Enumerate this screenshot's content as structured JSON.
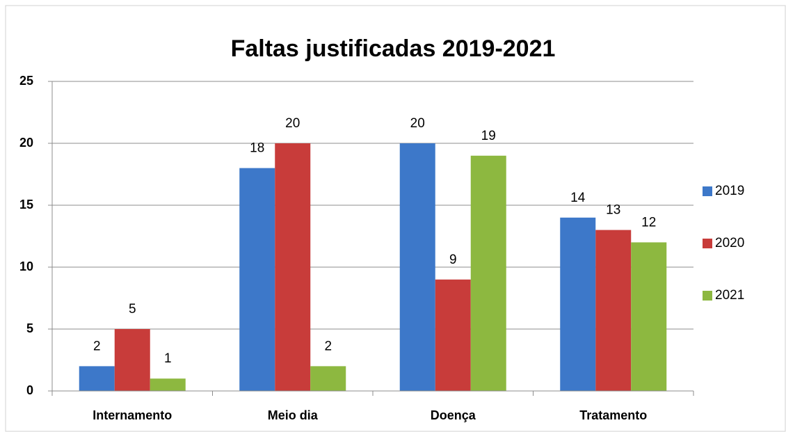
{
  "chart_data": {
    "type": "bar",
    "title": "Faltas justificadas 2019-2021",
    "categories": [
      "Internamento",
      "Meio dia",
      "Doença",
      "Tratamento"
    ],
    "series": [
      {
        "name": "2019",
        "color": "#3d78c9",
        "values": [
          2,
          18,
          20,
          14
        ]
      },
      {
        "name": "2020",
        "color": "#c83c3a",
        "values": [
          5,
          20,
          9,
          13
        ]
      },
      {
        "name": "2021",
        "color": "#8db840",
        "values": [
          1,
          2,
          19,
          12
        ]
      }
    ],
    "ylim": [
      0,
      25
    ],
    "yticks": [
      0,
      5,
      10,
      15,
      20,
      25
    ],
    "grid": true,
    "legend": "right"
  }
}
